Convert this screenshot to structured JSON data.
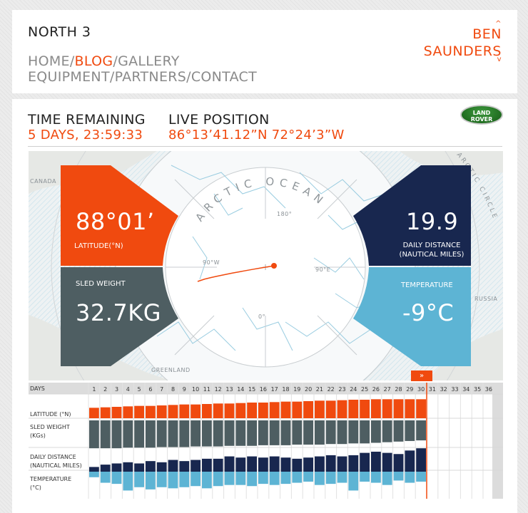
{
  "header": {
    "site_title": "NORTH 3",
    "nav_row1": [
      {
        "label": "HOME",
        "active": false
      },
      {
        "label": "BLOG",
        "active": true
      },
      {
        "label": "GALLERY",
        "active": false
      }
    ],
    "nav_row2": [
      {
        "label": "EQUIPMENT"
      },
      {
        "label": "PARTNERS"
      },
      {
        "label": "CONTACT"
      }
    ],
    "nav_separator": "/",
    "brand_line1": "BEN",
    "brand_line2": "SAUNDERS",
    "brand_caret_up": "^",
    "brand_caret_down": "v"
  },
  "status": {
    "time_label": "TIME REMAINING",
    "time_value": "5 DAYS, 23:59:33",
    "position_label": "LIVE POSITION",
    "position_value": "86°13’41.12”N 72°24’3”W",
    "sponsor_line1": "LAND",
    "sponsor_line2": "ROVER"
  },
  "readouts": {
    "latitude_value": "88°01’",
    "latitude_label": "LATITUDE(°N)",
    "sled_label": "SLED WEIGHT",
    "sled_value": "32.7KG",
    "distance_value": "19.9",
    "distance_label_line1": "DAILY DISTANCE",
    "distance_label_line2": "(NAUTICAL MILES)",
    "temperature_label": "TEMPERATURE",
    "temperature_value": "-9°C"
  },
  "map": {
    "ocean_label": "ARCTIC OCEAN",
    "circle_label": "ARCTIC CIRCLE",
    "degree_180": "180°",
    "degree_90w": "90°W",
    "degree_90e": "90°E",
    "degree_0": "0°",
    "canada": "CANADA",
    "greenland": "GREENLAND",
    "russia": "RUSSIA",
    "track": [
      [
        0.9,
        0.25
      ],
      [
        0.94,
        0.22
      ],
      [
        1.0,
        0.18
      ],
      [
        1.05,
        0.16
      ],
      [
        1.1,
        0.12
      ],
      [
        1.16,
        0.09
      ],
      [
        1.22,
        0.07
      ],
      [
        1.3,
        0.05
      ],
      [
        1.38,
        0.03
      ],
      [
        1.45,
        0.02
      ],
      [
        1.52,
        0.01
      ],
      [
        1.57,
        0.0
      ]
    ],
    "colors": {
      "latitude": "#f04a0f",
      "sled": "#4e5e62",
      "distance": "#18274f",
      "temperature": "#5db4d4",
      "accent": "#f04a0f"
    }
  },
  "timeline": {
    "days_label": "DAYS",
    "row_labels": [
      "LATITUDE (°N)",
      "SLED WEIGHT",
      "(KGs)",
      "DAILY DISTANCE",
      "(NAUTICAL MILES)",
      "TEMPERATURE",
      "(°C)"
    ],
    "days": [
      1,
      2,
      3,
      4,
      5,
      6,
      7,
      8,
      9,
      10,
      11,
      12,
      13,
      14,
      15,
      16,
      17,
      18,
      19,
      20,
      21,
      22,
      23,
      24,
      25,
      26,
      27,
      28,
      29,
      30,
      31,
      32,
      33,
      34,
      35,
      36
    ],
    "current_day": 30,
    "forward_button": "»",
    "latitude_series": [
      86.2,
      86.3,
      86.4,
      86.5,
      86.6,
      86.6,
      86.7,
      86.8,
      86.9,
      86.9,
      87.0,
      87.1,
      87.1,
      87.2,
      87.3,
      87.3,
      87.4,
      87.5,
      87.5,
      87.6,
      87.7,
      87.7,
      87.8,
      87.9,
      87.9,
      88.0,
      88.0,
      88.0,
      88.0,
      88.0
    ],
    "sled_series": [
      46,
      46,
      46,
      45,
      45,
      45,
      44,
      44,
      44,
      43,
      43,
      43,
      42,
      42,
      42,
      41,
      41,
      41,
      40,
      40,
      40,
      39,
      39,
      38,
      38,
      37,
      36,
      35,
      34,
      33
    ],
    "distance_series": [
      4,
      6,
      7,
      8,
      7,
      9,
      8,
      10,
      9,
      10,
      11,
      11,
      13,
      12,
      13,
      12,
      13,
      12,
      11,
      12,
      13,
      14,
      13,
      14,
      16,
      17,
      16,
      15,
      18,
      19.9
    ],
    "temperature_series": [
      -5,
      -10,
      -11,
      -17,
      -14,
      -16,
      -14,
      -15,
      -14,
      -13,
      -15,
      -13,
      -12,
      -12,
      -13,
      -11,
      -12,
      -11,
      -10,
      -9,
      -12,
      -11,
      -10,
      -17,
      -9,
      -10,
      -12,
      -8,
      -10,
      -9
    ]
  }
}
